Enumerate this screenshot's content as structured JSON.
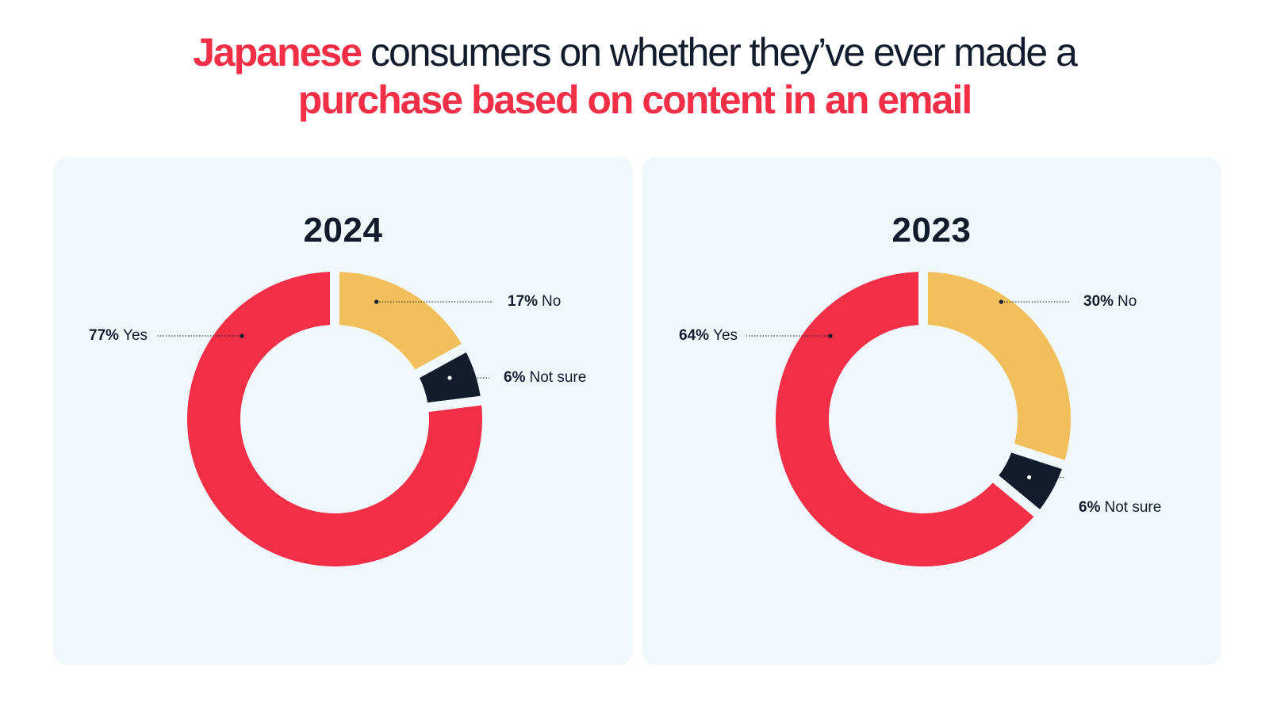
{
  "headline": {
    "accent_1": "Japanese",
    "middle": " consumers on whether they’ve ever made a",
    "accent_2": "purchase based on content in an email"
  },
  "colors": {
    "yes": "#f22f46",
    "no": "#f1bf5c",
    "not_sure": "#121c2d",
    "panel": "#f1f8fc"
  },
  "chart_data": [
    {
      "type": "pie",
      "title": "2024",
      "categories": [
        "No",
        "Not sure",
        "Yes"
      ],
      "values": [
        17,
        6,
        77
      ],
      "labels": [
        {
          "pct": "17%",
          "name": "No"
        },
        {
          "pct": "6%",
          "name": "Not sure"
        },
        {
          "pct": "77%",
          "name": "Yes"
        }
      ]
    },
    {
      "type": "pie",
      "title": "2023",
      "categories": [
        "No",
        "Not sure",
        "Yes"
      ],
      "values": [
        30,
        6,
        64
      ],
      "labels": [
        {
          "pct": "30%",
          "name": "No"
        },
        {
          "pct": "6%",
          "name": "Not sure"
        },
        {
          "pct": "64%",
          "name": "Yes"
        }
      ]
    }
  ]
}
